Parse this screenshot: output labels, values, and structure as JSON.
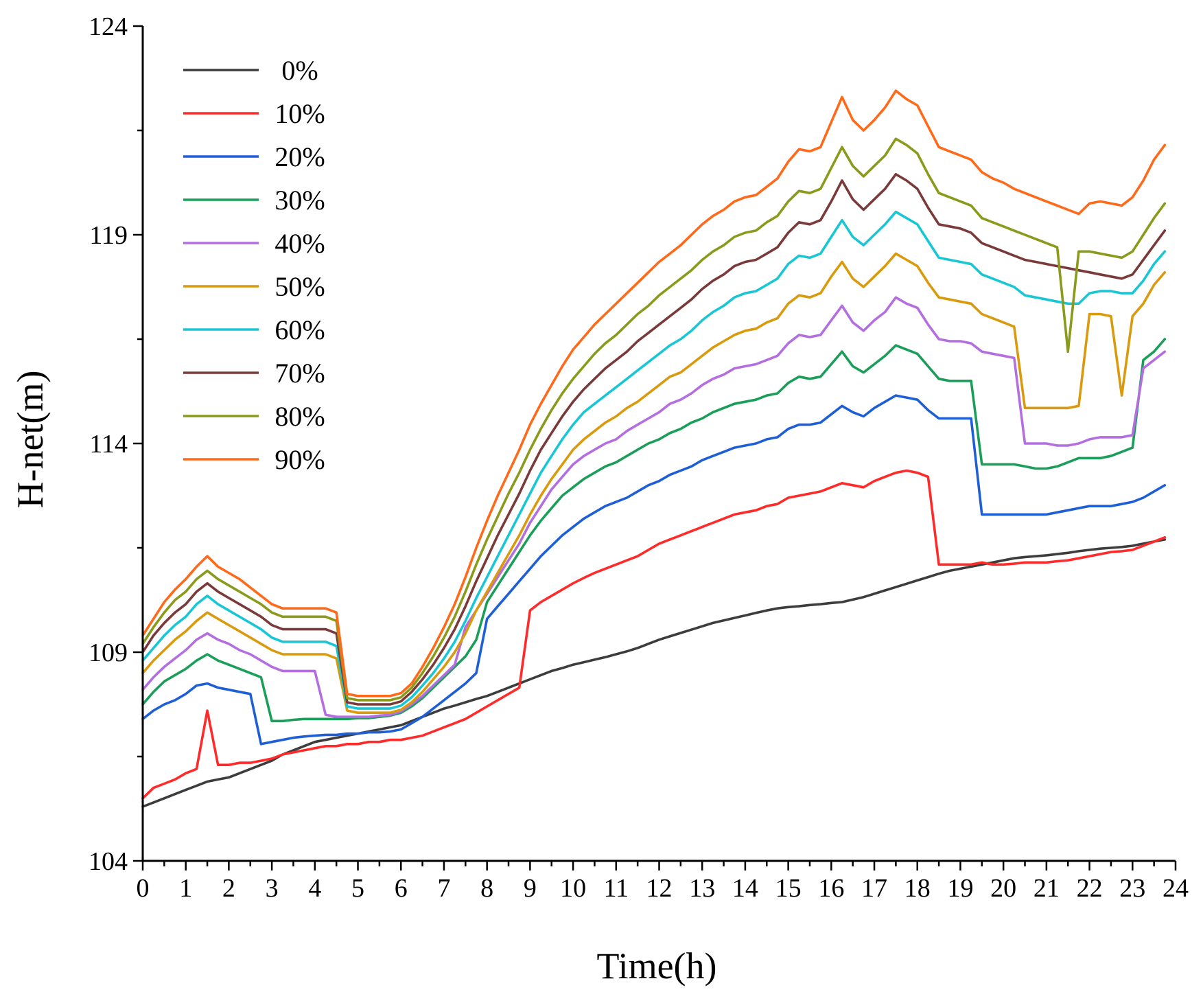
{
  "chart_data": {
    "type": "line",
    "title": "",
    "xlabel": "Time(h)",
    "ylabel": "H-net(m)",
    "xlim": [
      0,
      24
    ],
    "ylim": [
      104,
      124
    ],
    "xticks": [
      "0",
      "1",
      "2",
      "3",
      "4",
      "5",
      "6",
      "7",
      "8",
      "9",
      "10",
      "11",
      "12",
      "13",
      "14",
      "15",
      "16",
      "17",
      "18",
      "19",
      "20",
      "21",
      "22",
      "23",
      "24"
    ],
    "yticks": [
      "104",
      "109",
      "114",
      "119",
      "124"
    ],
    "grid": false,
    "legend_position": "top-left",
    "x": [
      0,
      0.25,
      0.5,
      0.75,
      1,
      1.25,
      1.5,
      1.75,
      2,
      2.25,
      2.5,
      2.75,
      3,
      3.25,
      3.5,
      3.75,
      4,
      4.25,
      4.5,
      4.75,
      5,
      5.25,
      5.5,
      5.75,
      6,
      6.25,
      6.5,
      6.75,
      7,
      7.25,
      7.5,
      7.75,
      8,
      8.25,
      8.5,
      8.75,
      9,
      9.25,
      9.5,
      9.75,
      10,
      10.25,
      10.5,
      10.75,
      11,
      11.25,
      11.5,
      11.75,
      12,
      12.25,
      12.5,
      12.75,
      13,
      13.25,
      13.5,
      13.75,
      14,
      14.25,
      14.5,
      14.75,
      15,
      15.25,
      15.5,
      15.75,
      16,
      16.25,
      16.5,
      16.75,
      17,
      17.25,
      17.5,
      17.75,
      18,
      18.25,
      18.5,
      18.75,
      19,
      19.25,
      19.5,
      19.75,
      20,
      20.25,
      20.5,
      20.75,
      21,
      21.25,
      21.5,
      21.75,
      22,
      22.25,
      22.5,
      22.75,
      23,
      23.25,
      23.5,
      23.75
    ],
    "series": [
      {
        "name": "0%",
        "color": "#3d3d3d",
        "values": [
          105.3,
          105.4,
          105.5,
          105.6,
          105.7,
          105.8,
          105.9,
          105.95,
          106,
          106.1,
          106.2,
          106.3,
          106.4,
          106.55,
          106.65,
          106.75,
          106.85,
          106.9,
          106.95,
          107,
          107.05,
          107.1,
          107.15,
          107.2,
          107.25,
          107.35,
          107.45,
          107.55,
          107.65,
          107.72,
          107.8,
          107.88,
          107.95,
          108.05,
          108.15,
          108.25,
          108.35,
          108.45,
          108.55,
          108.62,
          108.7,
          108.76,
          108.82,
          108.88,
          108.95,
          109.02,
          109.1,
          109.2,
          109.3,
          109.38,
          109.46,
          109.54,
          109.62,
          109.7,
          109.76,
          109.82,
          109.88,
          109.94,
          110,
          110.05,
          110.08,
          110.1,
          110.13,
          110.15,
          110.18,
          110.2,
          110.26,
          110.32,
          110.4,
          110.48,
          110.56,
          110.64,
          110.72,
          110.8,
          110.88,
          110.95,
          111,
          111.05,
          111.1,
          111.15,
          111.2,
          111.25,
          111.28,
          111.3,
          111.32,
          111.35,
          111.38,
          111.42,
          111.45,
          111.48,
          111.5,
          111.52,
          111.55,
          111.6,
          111.65,
          111.7
        ]
      },
      {
        "name": "10%",
        "color": "#ff2a2a",
        "values": [
          105.5,
          105.75,
          105.85,
          105.95,
          106.1,
          106.2,
          107.6,
          106.3,
          106.3,
          106.35,
          106.35,
          106.4,
          106.45,
          106.55,
          106.6,
          106.65,
          106.7,
          106.75,
          106.75,
          106.8,
          106.8,
          106.85,
          106.85,
          106.9,
          106.9,
          106.95,
          107,
          107.1,
          107.2,
          107.3,
          107.4,
          107.55,
          107.7,
          107.85,
          108,
          108.15,
          110,
          110.2,
          110.35,
          110.5,
          110.65,
          110.78,
          110.9,
          111,
          111.1,
          111.2,
          111.3,
          111.45,
          111.6,
          111.7,
          111.8,
          111.9,
          112,
          112.1,
          112.2,
          112.3,
          112.35,
          112.4,
          112.5,
          112.55,
          112.7,
          112.75,
          112.8,
          112.85,
          112.95,
          113.05,
          113.0,
          112.95,
          113.1,
          113.2,
          113.3,
          113.35,
          113.3,
          113.2,
          111.1,
          111.1,
          111.1,
          111.1,
          111.15,
          111.1,
          111.1,
          111.12,
          111.15,
          111.15,
          111.15,
          111.18,
          111.2,
          111.25,
          111.3,
          111.35,
          111.4,
          111.42,
          111.45,
          111.55,
          111.65,
          111.75
        ]
      },
      {
        "name": "20%",
        "color": "#1f5fd6",
        "values": [
          107.4,
          107.6,
          107.75,
          107.85,
          108,
          108.2,
          108.25,
          108.15,
          108.1,
          108.05,
          108,
          106.8,
          106.85,
          106.9,
          106.95,
          106.98,
          107,
          107.02,
          107.02,
          107.05,
          107.05,
          107.08,
          107.08,
          107.1,
          107.15,
          107.3,
          107.45,
          107.65,
          107.85,
          108.05,
          108.25,
          108.5,
          109.8,
          110.1,
          110.4,
          110.7,
          111.0,
          111.3,
          111.55,
          111.8,
          112.0,
          112.2,
          112.35,
          112.5,
          112.6,
          112.7,
          112.85,
          113.0,
          113.1,
          113.25,
          113.35,
          113.45,
          113.6,
          113.7,
          113.8,
          113.9,
          113.95,
          114.0,
          114.1,
          114.15,
          114.35,
          114.45,
          114.45,
          114.5,
          114.7,
          114.9,
          114.75,
          114.65,
          114.85,
          115.0,
          115.15,
          115.1,
          115.05,
          114.8,
          114.6,
          114.6,
          114.6,
          114.6,
          112.3,
          112.3,
          112.3,
          112.3,
          112.3,
          112.3,
          112.3,
          112.35,
          112.4,
          112.45,
          112.5,
          112.5,
          112.5,
          112.55,
          112.6,
          112.7,
          112.85,
          113.0
        ]
      },
      {
        "name": "30%",
        "color": "#1a9e5a",
        "values": [
          107.75,
          108.05,
          108.3,
          108.45,
          108.6,
          108.8,
          108.95,
          108.8,
          108.7,
          108.6,
          108.5,
          108.4,
          107.35,
          107.35,
          107.38,
          107.4,
          107.4,
          107.4,
          107.4,
          107.4,
          107.42,
          107.42,
          107.45,
          107.48,
          107.55,
          107.7,
          107.9,
          108.15,
          108.4,
          108.65,
          108.9,
          109.3,
          110.2,
          110.6,
          111.0,
          111.4,
          111.8,
          112.15,
          112.45,
          112.75,
          112.95,
          113.15,
          113.3,
          113.45,
          113.55,
          113.7,
          113.85,
          114.0,
          114.1,
          114.25,
          114.35,
          114.5,
          114.6,
          114.75,
          114.85,
          114.95,
          115.0,
          115.05,
          115.15,
          115.2,
          115.45,
          115.6,
          115.55,
          115.6,
          115.9,
          116.2,
          115.85,
          115.7,
          115.9,
          116.1,
          116.35,
          116.25,
          116.15,
          115.85,
          115.55,
          115.5,
          115.5,
          115.5,
          113.5,
          113.5,
          113.5,
          113.5,
          113.45,
          113.4,
          113.4,
          113.45,
          113.55,
          113.65,
          113.65,
          113.65,
          113.7,
          113.8,
          113.9,
          116.0,
          116.2,
          116.5
        ]
      },
      {
        "name": "40%",
        "color": "#b36ee0",
        "values": [
          108.1,
          108.4,
          108.65,
          108.85,
          109.05,
          109.3,
          109.45,
          109.3,
          109.2,
          109.05,
          108.95,
          108.8,
          108.65,
          108.55,
          108.55,
          108.55,
          108.55,
          107.5,
          107.45,
          107.45,
          107.45,
          107.45,
          107.48,
          107.5,
          107.58,
          107.75,
          107.95,
          108.2,
          108.45,
          108.7,
          109.6,
          110.0,
          110.4,
          110.8,
          111.2,
          111.6,
          112.1,
          112.5,
          112.9,
          113.2,
          113.5,
          113.7,
          113.85,
          114.0,
          114.1,
          114.3,
          114.45,
          114.6,
          114.75,
          114.95,
          115.05,
          115.2,
          115.4,
          115.55,
          115.65,
          115.8,
          115.85,
          115.9,
          116.0,
          116.1,
          116.4,
          116.6,
          116.55,
          116.6,
          116.95,
          117.3,
          116.9,
          116.7,
          116.95,
          117.15,
          117.5,
          117.35,
          117.25,
          116.85,
          116.5,
          116.45,
          116.45,
          116.4,
          116.2,
          116.15,
          116.1,
          116.05,
          114.0,
          114.0,
          114.0,
          113.95,
          113.95,
          114.0,
          114.1,
          114.15,
          114.15,
          114.15,
          114.2,
          115.8,
          116.0,
          116.2
        ]
      },
      {
        "name": "50%",
        "color": "#d99a0e",
        "values": [
          108.5,
          108.8,
          109.05,
          109.3,
          109.5,
          109.75,
          109.95,
          109.8,
          109.65,
          109.5,
          109.35,
          109.2,
          109.05,
          108.95,
          108.95,
          108.95,
          108.95,
          108.95,
          108.85,
          107.6,
          107.55,
          107.55,
          107.55,
          107.55,
          107.62,
          107.8,
          108.05,
          108.35,
          108.65,
          109.0,
          109.45,
          110.0,
          110.45,
          110.9,
          111.35,
          111.8,
          112.3,
          112.75,
          113.15,
          113.5,
          113.85,
          114.1,
          114.3,
          114.5,
          114.65,
          114.85,
          115.0,
          115.2,
          115.4,
          115.6,
          115.7,
          115.9,
          116.1,
          116.3,
          116.45,
          116.6,
          116.7,
          116.75,
          116.9,
          117.0,
          117.35,
          117.55,
          117.5,
          117.6,
          118.0,
          118.35,
          117.95,
          117.75,
          118.0,
          118.25,
          118.55,
          118.4,
          118.25,
          117.85,
          117.5,
          117.45,
          117.4,
          117.35,
          117.1,
          117.0,
          116.9,
          116.8,
          114.85,
          114.85,
          114.85,
          114.85,
          114.85,
          114.9,
          117.1,
          117.1,
          117.05,
          115.15,
          117.05,
          117.35,
          117.8,
          118.1
        ]
      },
      {
        "name": "60%",
        "color": "#19c7d4",
        "values": [
          108.8,
          109.1,
          109.4,
          109.65,
          109.85,
          110.15,
          110.35,
          110.15,
          110.0,
          109.85,
          109.7,
          109.55,
          109.35,
          109.25,
          109.25,
          109.25,
          109.25,
          109.25,
          109.15,
          107.7,
          107.65,
          107.65,
          107.65,
          107.65,
          107.72,
          107.92,
          108.2,
          108.5,
          108.85,
          109.25,
          109.75,
          110.3,
          110.8,
          111.3,
          111.8,
          112.3,
          112.8,
          113.3,
          113.7,
          114.1,
          114.45,
          114.75,
          114.95,
          115.15,
          115.35,
          115.55,
          115.75,
          115.95,
          116.15,
          116.35,
          116.5,
          116.7,
          116.95,
          117.15,
          117.3,
          117.5,
          117.6,
          117.65,
          117.8,
          117.95,
          118.3,
          118.5,
          118.45,
          118.55,
          118.95,
          119.35,
          118.95,
          118.75,
          119.0,
          119.25,
          119.55,
          119.4,
          119.25,
          118.85,
          118.45,
          118.4,
          118.35,
          118.3,
          118.05,
          117.95,
          117.85,
          117.75,
          117.55,
          117.5,
          117.45,
          117.4,
          117.35,
          117.35,
          117.6,
          117.65,
          117.65,
          117.6,
          117.6,
          117.9,
          118.3,
          118.6
        ]
      },
      {
        "name": "70%",
        "color": "#7a3a3a",
        "values": [
          109.0,
          109.4,
          109.7,
          109.95,
          110.15,
          110.45,
          110.65,
          110.45,
          110.3,
          110.15,
          110.0,
          109.85,
          109.65,
          109.55,
          109.55,
          109.55,
          109.55,
          109.55,
          109.45,
          107.8,
          107.75,
          107.75,
          107.75,
          107.75,
          107.82,
          108.05,
          108.35,
          108.7,
          109.1,
          109.55,
          110.1,
          110.7,
          111.25,
          111.8,
          112.3,
          112.8,
          113.35,
          113.85,
          114.25,
          114.65,
          115.0,
          115.3,
          115.55,
          115.8,
          116.0,
          116.2,
          116.45,
          116.65,
          116.85,
          117.05,
          117.25,
          117.45,
          117.7,
          117.9,
          118.05,
          118.25,
          118.35,
          118.4,
          118.55,
          118.7,
          119.05,
          119.3,
          119.25,
          119.35,
          119.8,
          120.3,
          119.85,
          119.6,
          119.85,
          120.1,
          120.45,
          120.3,
          120.1,
          119.65,
          119.25,
          119.2,
          119.15,
          119.05,
          118.8,
          118.7,
          118.6,
          118.5,
          118.4,
          118.35,
          118.3,
          118.25,
          118.2,
          118.15,
          118.1,
          118.05,
          118.0,
          117.95,
          118.05,
          118.4,
          118.75,
          119.1
        ]
      },
      {
        "name": "80%",
        "color": "#8a9a1a",
        "values": [
          109.2,
          109.6,
          109.95,
          110.25,
          110.45,
          110.75,
          110.95,
          110.75,
          110.6,
          110.45,
          110.3,
          110.15,
          109.95,
          109.85,
          109.85,
          109.85,
          109.85,
          109.85,
          109.75,
          107.9,
          107.85,
          107.85,
          107.85,
          107.85,
          107.92,
          108.15,
          108.5,
          108.9,
          109.35,
          109.85,
          110.45,
          111.1,
          111.7,
          112.25,
          112.8,
          113.3,
          113.85,
          114.35,
          114.8,
          115.2,
          115.55,
          115.85,
          116.15,
          116.4,
          116.6,
          116.85,
          117.1,
          117.3,
          117.55,
          117.75,
          117.95,
          118.15,
          118.4,
          118.6,
          118.75,
          118.95,
          119.05,
          119.1,
          119.3,
          119.45,
          119.8,
          120.05,
          120.0,
          120.1,
          120.6,
          121.1,
          120.65,
          120.4,
          120.65,
          120.9,
          121.3,
          121.15,
          120.95,
          120.45,
          120.0,
          119.9,
          119.8,
          119.7,
          119.4,
          119.3,
          119.2,
          119.1,
          119.0,
          118.9,
          118.8,
          118.7,
          116.2,
          118.6,
          118.6,
          118.55,
          118.5,
          118.45,
          118.6,
          119.0,
          119.4,
          119.75
        ]
      },
      {
        "name": "90%",
        "color": "#ff6a1a",
        "values": [
          109.4,
          109.8,
          110.2,
          110.5,
          110.75,
          111.05,
          111.3,
          111.05,
          110.9,
          110.75,
          110.55,
          110.35,
          110.15,
          110.05,
          110.05,
          110.05,
          110.05,
          110.05,
          109.95,
          108.0,
          107.95,
          107.95,
          107.95,
          107.95,
          108.02,
          108.25,
          108.65,
          109.1,
          109.6,
          110.15,
          110.8,
          111.5,
          112.15,
          112.75,
          113.3,
          113.85,
          114.45,
          114.95,
          115.4,
          115.85,
          116.25,
          116.55,
          116.85,
          117.1,
          117.35,
          117.6,
          117.85,
          118.1,
          118.35,
          118.55,
          118.75,
          119.0,
          119.25,
          119.45,
          119.6,
          119.8,
          119.9,
          119.95,
          120.15,
          120.35,
          120.75,
          121.05,
          121.0,
          121.1,
          121.7,
          122.3,
          121.75,
          121.5,
          121.75,
          122.05,
          122.45,
          122.25,
          122.1,
          121.6,
          121.1,
          121.0,
          120.9,
          120.8,
          120.5,
          120.35,
          120.25,
          120.1,
          120.0,
          119.9,
          119.8,
          119.7,
          119.6,
          119.5,
          119.75,
          119.8,
          119.75,
          119.7,
          119.9,
          120.3,
          120.8,
          121.15
        ]
      }
    ]
  }
}
